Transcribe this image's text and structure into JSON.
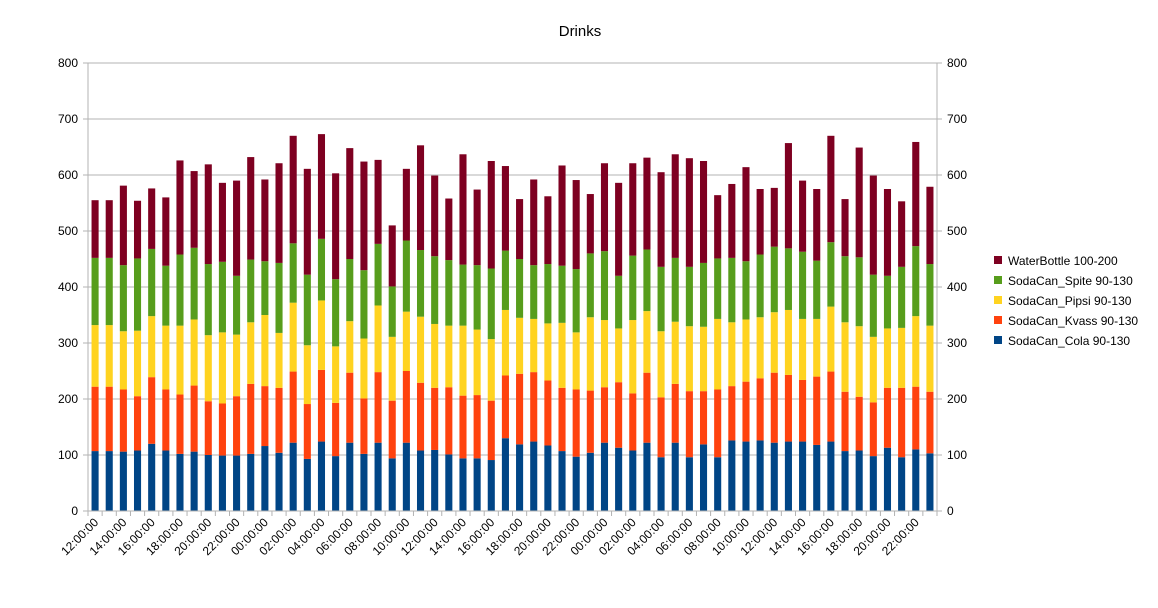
{
  "chart_data": {
    "type": "bar",
    "stacked": true,
    "title": "Drinks",
    "xlabel": "",
    "ylabel": "",
    "ylim": [
      0,
      800
    ],
    "yticks": [
      0,
      100,
      200,
      300,
      400,
      500,
      600,
      700,
      800
    ],
    "grid": true,
    "legend_position": "right",
    "x_tick_labels": [
      "12:00:00",
      "14:00:00",
      "16:00:00",
      "18:00:00",
      "20:00:00",
      "22:00:00",
      "00:00:00",
      "02:00:00",
      "04:00:00",
      "06:00:00",
      "08:00:00",
      "10:00:00",
      "12:00:00",
      "14:00:00",
      "16:00:00",
      "18:00:00",
      "20:00:00",
      "22:00:00",
      "00:00:00",
      "02:00:00",
      "04:00:00",
      "06:00:00",
      "08:00:00",
      "10:00:00",
      "12:00:00",
      "14:00:00",
      "16:00:00",
      "18:00:00",
      "20:00:00",
      "22:00:00"
    ],
    "bar_count": 60,
    "series": [
      {
        "name": "SodaCan_Cola 90-130",
        "color": "#004586",
        "values": [
          107,
          107,
          106,
          108,
          120,
          108,
          102,
          106,
          100,
          99,
          99,
          102,
          116,
          104,
          122,
          93,
          124,
          98,
          122,
          102,
          122,
          94,
          122,
          108,
          109,
          101,
          94,
          94,
          91,
          130,
          119,
          124,
          117,
          107,
          97,
          104,
          122,
          113,
          108,
          122,
          96,
          122,
          96,
          119,
          96,
          126,
          124,
          126,
          122,
          124,
          124,
          118,
          124,
          107,
          108,
          98,
          113,
          96,
          110,
          103
        ]
      },
      {
        "name": "SodaCan_Kvass 90-130",
        "color": "#ff420e",
        "values": [
          115,
          115,
          111,
          97,
          119,
          109,
          106,
          118,
          96,
          93,
          106,
          125,
          107,
          116,
          127,
          98,
          128,
          95,
          125,
          99,
          126,
          103,
          128,
          121,
          111,
          120,
          112,
          113,
          106,
          112,
          126,
          124,
          116,
          113,
          120,
          111,
          99,
          117,
          102,
          125,
          107,
          105,
          118,
          95,
          121,
          97,
          107,
          111,
          125,
          119,
          110,
          122,
          125,
          106,
          96,
          96,
          107,
          124,
          112,
          110
        ]
      },
      {
        "name": "SodaCan_Pipsi 90-130",
        "color": "#ffd320",
        "values": [
          110,
          110,
          104,
          117,
          109,
          114,
          123,
          118,
          118,
          127,
          110,
          110,
          127,
          98,
          123,
          105,
          124,
          101,
          92,
          107,
          119,
          114,
          106,
          118,
          114,
          110,
          125,
          117,
          110,
          117,
          100,
          95,
          102,
          116,
          102,
          131,
          120,
          96,
          131,
          110,
          118,
          111,
          116,
          115,
          126,
          114,
          111,
          109,
          108,
          116,
          109,
          103,
          116,
          124,
          126,
          117,
          106,
          107,
          126,
          118
        ]
      },
      {
        "name": "SodaCan_Spite 90-130",
        "color": "#579d1c",
        "values": [
          120,
          120,
          118,
          129,
          120,
          107,
          127,
          128,
          127,
          126,
          105,
          112,
          96,
          125,
          106,
          126,
          110,
          120,
          111,
          122,
          110,
          90,
          127,
          119,
          121,
          117,
          109,
          115,
          126,
          106,
          105,
          96,
          106,
          102,
          113,
          114,
          123,
          94,
          115,
          110,
          115,
          114,
          106,
          114,
          108,
          115,
          104,
          112,
          117,
          110,
          120,
          104,
          115,
          118,
          123,
          111,
          94,
          109,
          125,
          110
        ]
      },
      {
        "name": "WaterBottle 100-200",
        "color": "#7e0021",
        "values": [
          103,
          103,
          142,
          103,
          108,
          122,
          168,
          137,
          178,
          141,
          170,
          183,
          146,
          178,
          192,
          189,
          187,
          189,
          198,
          194,
          150,
          109,
          128,
          187,
          144,
          110,
          197,
          135,
          192,
          151,
          107,
          153,
          121,
          179,
          159,
          106,
          157,
          166,
          165,
          164,
          169,
          185,
          194,
          182,
          113,
          132,
          168,
          117,
          105,
          188,
          127,
          128,
          190,
          102,
          196,
          177,
          155,
          117,
          186,
          138
        ]
      }
    ]
  },
  "chart_ui": {
    "title": "Drinks",
    "legend": [
      "WaterBottle 100-200",
      "SodaCan_Spite 90-130",
      "SodaCan_Pipsi 90-130",
      "SodaCan_Kvass 90-130",
      "SodaCan_Cola 90-130"
    ]
  }
}
